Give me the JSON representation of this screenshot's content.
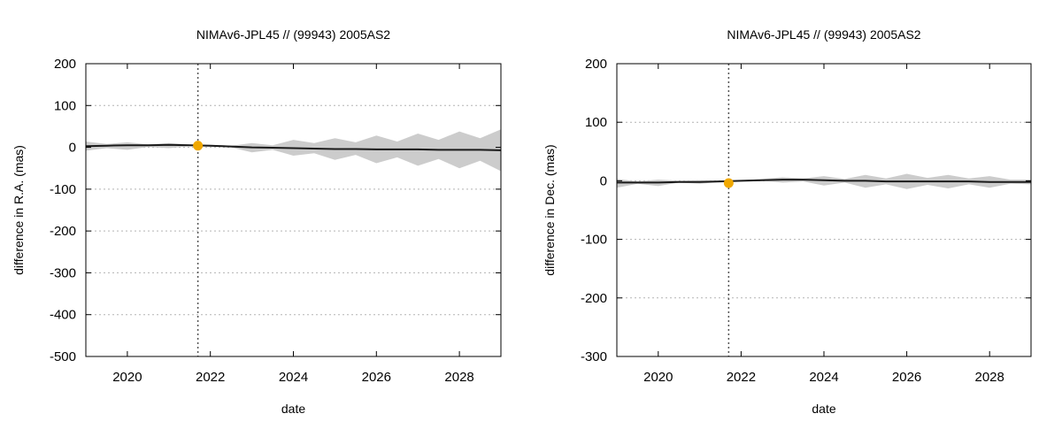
{
  "chart_data": [
    {
      "type": "line",
      "title": "NIMAv6-JPL45 // (99943) 2005AS2",
      "xlabel": "date",
      "ylabel": "difference in R.A. (mas)",
      "xlim": [
        2019.0,
        2029.0
      ],
      "ylim": [
        -500,
        200
      ],
      "x_ticks": [
        2020,
        2022,
        2024,
        2026,
        2028
      ],
      "y_ticks": [
        200,
        100,
        0,
        -100,
        -200,
        -300,
        -400,
        -500
      ],
      "grid": "horizontal-dotted",
      "reference_date": 2021.7,
      "observation_point": {
        "x": 2021.7,
        "y": 4
      },
      "series": [
        {
          "role": "difference",
          "x": [
            2019.0,
            2019.5,
            2020.0,
            2020.5,
            2021.0,
            2021.5,
            2022.0,
            2022.5,
            2023.0,
            2023.5,
            2024.0,
            2024.5,
            2025.0,
            2025.5,
            2026.0,
            2026.5,
            2027.0,
            2027.5,
            2028.0,
            2028.5,
            2029.0
          ],
          "values": [
            3,
            4,
            5,
            5,
            6,
            5,
            4,
            2,
            0,
            -1,
            -2,
            -3,
            -4,
            -4,
            -5,
            -5,
            -5,
            -6,
            -6,
            -6,
            -7
          ]
        },
        {
          "role": "uncertainty-band",
          "x": [
            2019.0,
            2019.5,
            2020.0,
            2020.5,
            2021.0,
            2021.5,
            2022.0,
            2022.5,
            2023.0,
            2023.5,
            2024.0,
            2024.5,
            2025.0,
            2025.5,
            2026.0,
            2026.5,
            2027.0,
            2027.5,
            2028.0,
            2028.5,
            2029.0
          ],
          "upper": [
            14,
            8,
            12,
            7,
            10,
            7,
            6,
            4,
            10,
            5,
            18,
            10,
            22,
            12,
            28,
            14,
            33,
            18,
            38,
            22,
            43
          ],
          "lower": [
            -8,
            -2,
            -6,
            1,
            -2,
            3,
            2,
            0,
            -12,
            -6,
            -20,
            -14,
            -30,
            -18,
            -38,
            -24,
            -44,
            -28,
            -50,
            -32,
            -57
          ]
        }
      ]
    },
    {
      "type": "line",
      "title": "NIMAv6-JPL45 // (99943) 2005AS2",
      "xlabel": "date",
      "ylabel": "difference in Dec. (mas)",
      "xlim": [
        2019.0,
        2029.0
      ],
      "ylim": [
        -300,
        200
      ],
      "x_ticks": [
        2020,
        2022,
        2024,
        2026,
        2028
      ],
      "y_ticks": [
        200,
        100,
        0,
        -100,
        -200,
        -300
      ],
      "grid": "horizontal-dotted",
      "reference_date": 2021.7,
      "observation_point": {
        "x": 2021.7,
        "y": -4
      },
      "series": [
        {
          "role": "difference",
          "x": [
            2019.0,
            2019.5,
            2020.0,
            2020.5,
            2021.0,
            2021.5,
            2022.0,
            2022.5,
            2023.0,
            2023.5,
            2024.0,
            2024.5,
            2025.0,
            2025.5,
            2026.0,
            2026.5,
            2027.0,
            2027.5,
            2028.0,
            2028.5,
            2029.0
          ],
          "values": [
            -3,
            -3,
            -3,
            -2,
            -2,
            -1,
            0,
            1,
            2,
            2,
            1,
            0,
            0,
            -1,
            -1,
            -1,
            -1,
            -1,
            -2,
            -2,
            -2
          ]
        },
        {
          "role": "uncertainty-band",
          "x": [
            2019.0,
            2019.5,
            2020.0,
            2020.5,
            2021.0,
            2021.5,
            2022.0,
            2022.5,
            2023.0,
            2023.5,
            2024.0,
            2024.5,
            2025.0,
            2025.5,
            2026.0,
            2026.5,
            2027.0,
            2027.5,
            2028.0,
            2028.5,
            2029.0
          ],
          "upper": [
            3,
            -1,
            2,
            0,
            1,
            0,
            1,
            3,
            6,
            4,
            8,
            3,
            10,
            4,
            12,
            5,
            10,
            4,
            8,
            2,
            2
          ],
          "lower": [
            -12,
            -5,
            -9,
            -3,
            -5,
            -2,
            -1,
            0,
            -3,
            -1,
            -8,
            -3,
            -12,
            -6,
            -14,
            -7,
            -13,
            -6,
            -12,
            -5,
            -6
          ]
        }
      ]
    }
  ],
  "colors": {
    "band": "#cccccc",
    "line": "#1a1a1a",
    "point": "#f0a800",
    "grid": "#b4b4b4",
    "reference_line": "#555555"
  }
}
